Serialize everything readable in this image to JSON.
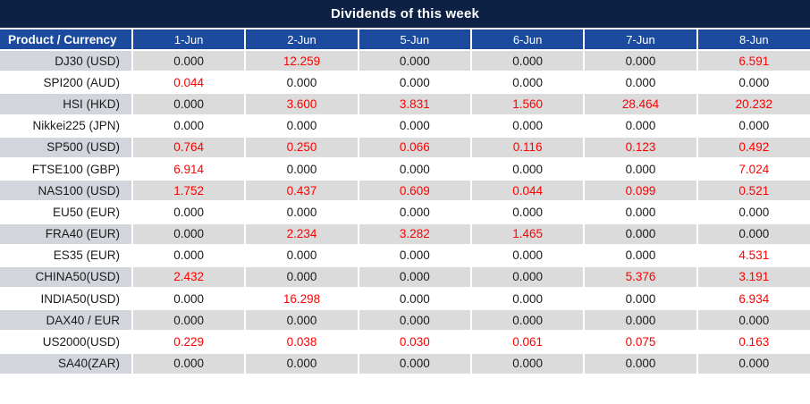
{
  "title": "Dividends of this week",
  "colors": {
    "title_bg": "#0d2144",
    "header_bg": "#1b4a9e",
    "row_stripe": "#dbdbdb",
    "row_stripe_product": "#d2d6dc",
    "value_red": "#fe0000",
    "value_black": "#1a1a1a"
  },
  "table": {
    "product_header": "Product / Currency",
    "date_headers": [
      "1-Jun",
      "2-Jun",
      "5-Jun",
      "6-Jun",
      "7-Jun",
      "8-Jun"
    ],
    "rows": [
      {
        "product": "DJ30 (USD)",
        "values": [
          "0.000",
          "12.259",
          "0.000",
          "0.000",
          "0.000",
          "6.591"
        ],
        "red": [
          false,
          true,
          false,
          false,
          false,
          true
        ]
      },
      {
        "product": "SPI200 (AUD)",
        "values": [
          "0.044",
          "0.000",
          "0.000",
          "0.000",
          "0.000",
          "0.000"
        ],
        "red": [
          true,
          false,
          false,
          false,
          false,
          false
        ]
      },
      {
        "product": "HSI (HKD)",
        "values": [
          "0.000",
          "3.600",
          "3.831",
          "1.560",
          "28.464",
          "20.232"
        ],
        "red": [
          false,
          true,
          true,
          true,
          true,
          true
        ]
      },
      {
        "product": "Nikkei225 (JPN)",
        "values": [
          "0.000",
          "0.000",
          "0.000",
          "0.000",
          "0.000",
          "0.000"
        ],
        "red": [
          false,
          false,
          false,
          false,
          false,
          false
        ]
      },
      {
        "product": "SP500 (USD)",
        "values": [
          "0.764",
          "0.250",
          "0.066",
          "0.116",
          "0.123",
          "0.492"
        ],
        "red": [
          true,
          true,
          true,
          true,
          true,
          true
        ]
      },
      {
        "product": "FTSE100 (GBP)",
        "values": [
          "6.914",
          "0.000",
          "0.000",
          "0.000",
          "0.000",
          "7.024"
        ],
        "red": [
          true,
          false,
          false,
          false,
          false,
          true
        ]
      },
      {
        "product": "NAS100 (USD)",
        "values": [
          "1.752",
          "0.437",
          "0.609",
          "0.044",
          "0.099",
          "0.521"
        ],
        "red": [
          true,
          true,
          true,
          true,
          true,
          true
        ]
      },
      {
        "product": "EU50 (EUR)",
        "values": [
          "0.000",
          "0.000",
          "0.000",
          "0.000",
          "0.000",
          "0.000"
        ],
        "red": [
          false,
          false,
          false,
          false,
          false,
          false
        ]
      },
      {
        "product": "FRA40 (EUR)",
        "values": [
          "0.000",
          "2.234",
          "3.282",
          "1.465",
          "0.000",
          "0.000"
        ],
        "red": [
          false,
          true,
          true,
          true,
          false,
          false
        ]
      },
      {
        "product": "ES35 (EUR)",
        "values": [
          "0.000",
          "0.000",
          "0.000",
          "0.000",
          "0.000",
          "4.531"
        ],
        "red": [
          false,
          false,
          false,
          false,
          false,
          true
        ]
      },
      {
        "product": "CHINA50(USD)",
        "values": [
          "2.432",
          "0.000",
          "0.000",
          "0.000",
          "5.376",
          "3.191"
        ],
        "red": [
          true,
          false,
          false,
          false,
          true,
          true
        ]
      },
      {
        "product": "INDIA50(USD)",
        "values": [
          "0.000",
          "16.298",
          "0.000",
          "0.000",
          "0.000",
          "6.934"
        ],
        "red": [
          false,
          true,
          false,
          false,
          false,
          true
        ]
      },
      {
        "product": "DAX40 / EUR",
        "values": [
          "0.000",
          "0.000",
          "0.000",
          "0.000",
          "0.000",
          "0.000"
        ],
        "red": [
          false,
          false,
          false,
          false,
          false,
          false
        ]
      },
      {
        "product": "US2000(USD)",
        "values": [
          "0.229",
          "0.038",
          "0.030",
          "0.061",
          "0.075",
          "0.163"
        ],
        "red": [
          true,
          true,
          true,
          true,
          true,
          true
        ]
      },
      {
        "product": "SA40(ZAR)",
        "values": [
          "0.000",
          "0.000",
          "0.000",
          "0.000",
          "0.000",
          "0.000"
        ],
        "red": [
          false,
          false,
          false,
          false,
          false,
          false
        ]
      }
    ]
  }
}
